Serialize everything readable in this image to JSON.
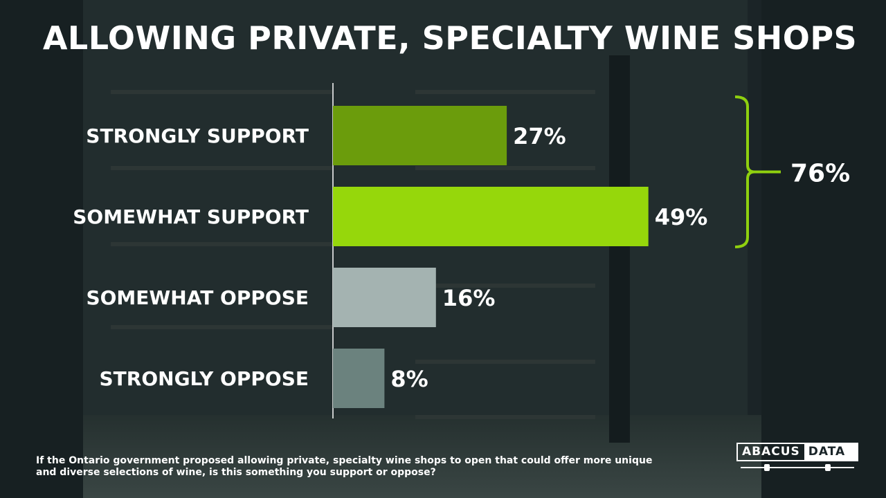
{
  "title": "ALLOWING PRIVATE, SPECIALTY WINE SHOPS",
  "question": "If the Ontario government proposed allowing private, specialty wine shops to open that could offer more unique and diverse selections of wine, is this something you support or oppose?",
  "logo": {
    "left": "ABACUS",
    "right": "DATA"
  },
  "chart_data": {
    "type": "bar",
    "orientation": "horizontal",
    "categories": [
      "STRONGLY SUPPORT",
      "SOMEWHAT SUPPORT",
      "SOMEWHAT OPPOSE",
      "STRONGLY OPPOSE"
    ],
    "values": [
      27,
      49,
      16,
      8
    ],
    "value_labels": [
      "27%",
      "49%",
      "16%",
      "8%"
    ],
    "colors": [
      "#6b9c0c",
      "#96d70b",
      "#a4b3b1",
      "#6b827e"
    ],
    "bracket": {
      "covers": [
        "STRONGLY SUPPORT",
        "SOMEWHAT SUPPORT"
      ],
      "label": "76%",
      "color": "#8fd00f"
    },
    "xlim": [
      0,
      100
    ]
  }
}
